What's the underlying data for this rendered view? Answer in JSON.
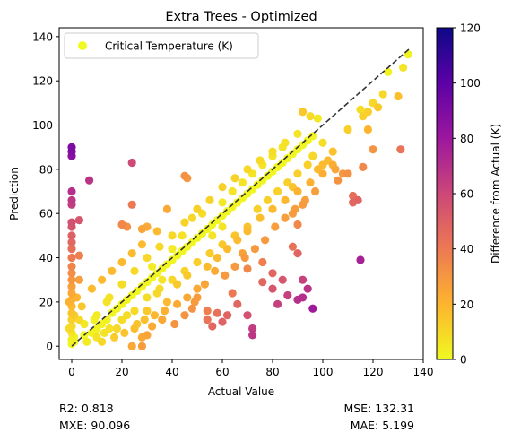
{
  "chart_data": {
    "type": "scatter",
    "title": "Extra Trees - Optimized",
    "xlabel": "Actual Value",
    "ylabel": "Prediction",
    "xlim": [
      -5,
      140
    ],
    "ylim": [
      -6,
      144
    ],
    "xticks": [
      0,
      20,
      40,
      60,
      80,
      100,
      120,
      140
    ],
    "yticks": [
      0,
      20,
      40,
      60,
      80,
      100,
      120,
      140
    ],
    "xtick_labels": [
      "0",
      "20",
      "40",
      "60",
      "80",
      "100",
      "120",
      "140"
    ],
    "ytick_labels": [
      "0",
      "20",
      "40",
      "60",
      "80",
      "100",
      "120",
      "140"
    ],
    "grid": false,
    "legend": {
      "position": "top-left",
      "entries": [
        "Critical Temperature (K)"
      ]
    },
    "reference_line": {
      "style": "dashed",
      "color": "#333333",
      "from": [
        0,
        0
      ],
      "to": [
        135,
        135
      ]
    },
    "colorbar": {
      "label": "Difference from Actual (K)",
      "range": [
        0,
        120
      ],
      "ticks": [
        0,
        20,
        40,
        60,
        80,
        100,
        120
      ],
      "tick_labels": [
        "0",
        "20",
        "40",
        "60",
        "80",
        "100",
        "120"
      ],
      "colormap": "plasma_r",
      "colors": [
        "#f0f921",
        "#fdb42f",
        "#ed7953",
        "#cc4778",
        "#9c179e",
        "#5c01a6",
        "#0d0887"
      ]
    },
    "points": [
      [
        0,
        90
      ],
      [
        0,
        88
      ],
      [
        0,
        86
      ],
      [
        0,
        70
      ],
      [
        0,
        66
      ],
      [
        0,
        64
      ],
      [
        0,
        56
      ],
      [
        0,
        54
      ],
      [
        0,
        50
      ],
      [
        0,
        47
      ],
      [
        0,
        44
      ],
      [
        0,
        40
      ],
      [
        0,
        36
      ],
      [
        0,
        33
      ],
      [
        0,
        30
      ],
      [
        0,
        27
      ],
      [
        0,
        24
      ],
      [
        0,
        21
      ],
      [
        0,
        18
      ],
      [
        0,
        15
      ],
      [
        0,
        12
      ],
      [
        0,
        9
      ],
      [
        0,
        6
      ],
      [
        0,
        3
      ],
      [
        0,
        1
      ],
      [
        -1,
        20
      ],
      [
        1,
        14
      ],
      [
        -1,
        8
      ],
      [
        1,
        4
      ],
      [
        1,
        2
      ],
      [
        3,
        57
      ],
      [
        3,
        41
      ],
      [
        3,
        30
      ],
      [
        7,
        75
      ],
      [
        2,
        22
      ],
      [
        3,
        12
      ],
      [
        5,
        5
      ],
      [
        24,
        83
      ],
      [
        24,
        64
      ],
      [
        20,
        55
      ],
      [
        22,
        54
      ],
      [
        28,
        53
      ],
      [
        30,
        54
      ],
      [
        34,
        52
      ],
      [
        38,
        62
      ],
      [
        45,
        77
      ],
      [
        46,
        76
      ],
      [
        60,
        65
      ],
      [
        62,
        61
      ],
      [
        24,
        0
      ],
      [
        28,
        0
      ],
      [
        28,
        4
      ],
      [
        30,
        5
      ],
      [
        32,
        9
      ],
      [
        36,
        12
      ],
      [
        42,
        19
      ],
      [
        46,
        22
      ],
      [
        48,
        17
      ],
      [
        50,
        22
      ],
      [
        54,
        12
      ],
      [
        54,
        16
      ],
      [
        56,
        9
      ],
      [
        58,
        15
      ],
      [
        60,
        11
      ],
      [
        62,
        14
      ],
      [
        64,
        24
      ],
      [
        66,
        19
      ],
      [
        70,
        14
      ],
      [
        70,
        35
      ],
      [
        68,
        42
      ],
      [
        72,
        8
      ],
      [
        72,
        5
      ],
      [
        76,
        29
      ],
      [
        76,
        38
      ],
      [
        80,
        26
      ],
      [
        80,
        33
      ],
      [
        82,
        19
      ],
      [
        84,
        30
      ],
      [
        86,
        23
      ],
      [
        88,
        45
      ],
      [
        90,
        21
      ],
      [
        90,
        42
      ],
      [
        92,
        22
      ],
      [
        92,
        30
      ],
      [
        94,
        26
      ],
      [
        96,
        17
      ],
      [
        88,
        60
      ],
      [
        90,
        55
      ],
      [
        98,
        80
      ],
      [
        100,
        82
      ],
      [
        104,
        82
      ],
      [
        106,
        75
      ],
      [
        110,
        78
      ],
      [
        112,
        68
      ],
      [
        114,
        66
      ],
      [
        115,
        39
      ],
      [
        120,
        89
      ],
      [
        110,
        98
      ],
      [
        118,
        98
      ],
      [
        116,
        104
      ],
      [
        115,
        107
      ],
      [
        118,
        106
      ],
      [
        120,
        110
      ],
      [
        122,
        108
      ],
      [
        124,
        114
      ],
      [
        126,
        124
      ],
      [
        130,
        113
      ],
      [
        132,
        126
      ],
      [
        134,
        132
      ],
      [
        131,
        89
      ],
      [
        112,
        65
      ],
      [
        116,
        81
      ],
      [
        10,
        8
      ],
      [
        12,
        10
      ],
      [
        14,
        12
      ],
      [
        16,
        15
      ],
      [
        18,
        17
      ],
      [
        20,
        19
      ],
      [
        22,
        21
      ],
      [
        24,
        23
      ],
      [
        26,
        25
      ],
      [
        28,
        27
      ],
      [
        30,
        29
      ],
      [
        32,
        31
      ],
      [
        34,
        33
      ],
      [
        36,
        35
      ],
      [
        38,
        37
      ],
      [
        40,
        39
      ],
      [
        42,
        41
      ],
      [
        44,
        43
      ],
      [
        46,
        45
      ],
      [
        48,
        47
      ],
      [
        50,
        49
      ],
      [
        52,
        51
      ],
      [
        54,
        53
      ],
      [
        56,
        55
      ],
      [
        58,
        57
      ],
      [
        60,
        59
      ],
      [
        62,
        61
      ],
      [
        64,
        63
      ],
      [
        66,
        65
      ],
      [
        68,
        67
      ],
      [
        70,
        69
      ],
      [
        72,
        71
      ],
      [
        74,
        73
      ],
      [
        76,
        75
      ],
      [
        78,
        77
      ],
      [
        80,
        79
      ],
      [
        82,
        81
      ],
      [
        84,
        83
      ],
      [
        86,
        85
      ],
      [
        88,
        87
      ],
      [
        90,
        89
      ],
      [
        92,
        91
      ],
      [
        94,
        93
      ],
      [
        96,
        95
      ],
      [
        10,
        14
      ],
      [
        15,
        22
      ],
      [
        20,
        28
      ],
      [
        25,
        34
      ],
      [
        30,
        40
      ],
      [
        35,
        45
      ],
      [
        40,
        50
      ],
      [
        45,
        56
      ],
      [
        50,
        62
      ],
      [
        55,
        66
      ],
      [
        60,
        72
      ],
      [
        65,
        76
      ],
      [
        70,
        80
      ],
      [
        75,
        84
      ],
      [
        80,
        88
      ],
      [
        85,
        92
      ],
      [
        90,
        96
      ],
      [
        92,
        106
      ],
      [
        95,
        104
      ],
      [
        98,
        103
      ],
      [
        10,
        4
      ],
      [
        15,
        8
      ],
      [
        20,
        12
      ],
      [
        25,
        16
      ],
      [
        30,
        22
      ],
      [
        35,
        26
      ],
      [
        40,
        30
      ],
      [
        45,
        34
      ],
      [
        50,
        38
      ],
      [
        55,
        42
      ],
      [
        60,
        46
      ],
      [
        65,
        50
      ],
      [
        70,
        54
      ],
      [
        75,
        58
      ],
      [
        80,
        62
      ],
      [
        85,
        66
      ],
      [
        90,
        70
      ],
      [
        95,
        74
      ],
      [
        100,
        78
      ],
      [
        102,
        84
      ],
      [
        5,
        10
      ],
      [
        8,
        6
      ],
      [
        12,
        2
      ],
      [
        14,
        20
      ],
      [
        18,
        8
      ],
      [
        22,
        14
      ],
      [
        26,
        10
      ],
      [
        30,
        16
      ],
      [
        34,
        24
      ],
      [
        38,
        20
      ],
      [
        42,
        28
      ],
      [
        46,
        32
      ],
      [
        50,
        26
      ],
      [
        54,
        36
      ],
      [
        58,
        40
      ],
      [
        62,
        44
      ],
      [
        66,
        48
      ],
      [
        70,
        52
      ],
      [
        74,
        62
      ],
      [
        78,
        66
      ],
      [
        82,
        70
      ],
      [
        86,
        74
      ],
      [
        90,
        78
      ],
      [
        94,
        82
      ],
      [
        4,
        18
      ],
      [
        8,
        26
      ],
      [
        12,
        30
      ],
      [
        16,
        34
      ],
      [
        20,
        38
      ],
      [
        24,
        42
      ],
      [
        28,
        46
      ],
      [
        32,
        36
      ],
      [
        36,
        30
      ],
      [
        40,
        44
      ],
      [
        44,
        50
      ],
      [
        48,
        58
      ],
      [
        52,
        60
      ],
      [
        56,
        50
      ],
      [
        60,
        54
      ],
      [
        64,
        70
      ],
      [
        68,
        74
      ],
      [
        72,
        78
      ],
      [
        76,
        82
      ],
      [
        80,
        86
      ],
      [
        84,
        90
      ],
      [
        88,
        72
      ],
      [
        92,
        64
      ],
      [
        96,
        86
      ],
      [
        100,
        92
      ],
      [
        104,
        88
      ],
      [
        6,
        2
      ],
      [
        9,
        12
      ],
      [
        13,
        6
      ],
      [
        17,
        4
      ],
      [
        21,
        6
      ],
      [
        25,
        8
      ],
      [
        29,
        12
      ],
      [
        33,
        14
      ],
      [
        37,
        16
      ],
      [
        41,
        10
      ],
      [
        45,
        14
      ],
      [
        49,
        20
      ],
      [
        53,
        28
      ],
      [
        57,
        34
      ],
      [
        61,
        32
      ],
      [
        65,
        36
      ],
      [
        69,
        40
      ],
      [
        73,
        44
      ],
      [
        77,
        48
      ],
      [
        81,
        54
      ],
      [
        85,
        58
      ],
      [
        89,
        62
      ],
      [
        93,
        66
      ],
      [
        97,
        70
      ],
      [
        105,
        80
      ],
      [
        108,
        78
      ]
    ]
  },
  "metrics": {
    "r2": "R2: 0.818",
    "mxe": "MXE: 90.096",
    "mse": "MSE: 132.31",
    "mae": "MAE: 5.199"
  }
}
